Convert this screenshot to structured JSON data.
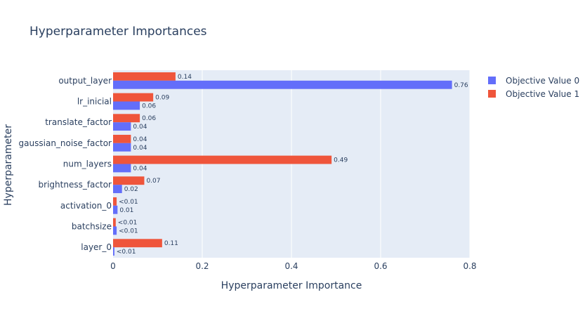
{
  "chart_data": {
    "type": "bar",
    "orientation": "horizontal",
    "title": "Hyperparameter Importances",
    "xlabel": "Hyperparameter Importance",
    "ylabel": "Hyperparameter",
    "xlim": [
      0,
      0.8
    ],
    "x_ticks": [
      "0",
      "0.2",
      "0.4",
      "0.6",
      "0.8"
    ],
    "grid": true,
    "legend_position": "top-right",
    "categories": [
      "output_layer",
      "lr_inicial",
      "translate_factor",
      "gaussian_noise_factor",
      "num_layers",
      "brightness_factor",
      "activation_0",
      "batchsize",
      "layer_0"
    ],
    "series": [
      {
        "name": "Objective Value 0",
        "color": "#636efa",
        "values": [
          0.76,
          0.06,
          0.04,
          0.04,
          0.04,
          0.02,
          0.01,
          0.008,
          0.003
        ],
        "labels": [
          "0.76",
          "0.06",
          "0.04",
          "0.04",
          "0.04",
          "0.02",
          "0.01",
          "<0.01",
          "<0.01"
        ]
      },
      {
        "name": "Objective Value 1",
        "color": "#ef553b",
        "values": [
          0.14,
          0.09,
          0.06,
          0.04,
          0.49,
          0.07,
          0.008,
          0.006,
          0.11
        ],
        "labels": [
          "0.14",
          "0.09",
          "0.06",
          "0.04",
          "0.49",
          "0.07",
          "<0.01",
          "<0.01",
          "0.11"
        ]
      }
    ],
    "colors": {
      "plot_bg": "#e5ecf6",
      "grid": "#ffffff",
      "text": "#2a3f5f"
    }
  }
}
